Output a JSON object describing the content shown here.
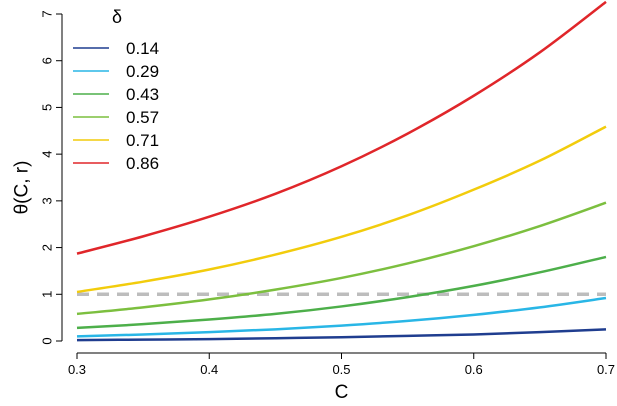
{
  "chart_data": {
    "type": "line",
    "title": "",
    "xlabel": "C",
    "ylabel": "θ(C, r)",
    "xlim": [
      0.3,
      0.7
    ],
    "ylim": [
      0,
      7
    ],
    "x_ticks": [
      0.3,
      0.4,
      0.5,
      0.6,
      0.7
    ],
    "x_tick_labels": [
      "0.3",
      "0.4",
      "0.5",
      "0.6",
      "0.7"
    ],
    "y_ticks": [
      0,
      1,
      2,
      3,
      4,
      5,
      6,
      7
    ],
    "y_tick_labels": [
      "0",
      "1",
      "2",
      "3",
      "4",
      "5",
      "6",
      "7"
    ],
    "grid": false,
    "legend": {
      "title": "δ",
      "placement": "top-left"
    },
    "reference_line": {
      "y": 1,
      "style": "dashed",
      "color": "#bdbdbd"
    },
    "x": [
      0.3,
      0.35,
      0.4,
      0.45,
      0.5,
      0.55,
      0.6,
      0.65,
      0.7
    ],
    "series": [
      {
        "name": "0.14",
        "color": "#1f3d8f",
        "values": [
          0.02,
          0.03,
          0.04,
          0.06,
          0.08,
          0.11,
          0.14,
          0.19,
          0.25
        ]
      },
      {
        "name": "0.29",
        "color": "#29b6e6",
        "values": [
          0.1,
          0.14,
          0.19,
          0.25,
          0.33,
          0.43,
          0.56,
          0.72,
          0.92
        ]
      },
      {
        "name": "0.43",
        "color": "#4daf4a",
        "values": [
          0.28,
          0.36,
          0.46,
          0.58,
          0.74,
          0.94,
          1.18,
          1.47,
          1.8
        ]
      },
      {
        "name": "0.57",
        "color": "#7cbf3f",
        "values": [
          0.58,
          0.72,
          0.89,
          1.1,
          1.35,
          1.66,
          2.03,
          2.46,
          2.96
        ]
      },
      {
        "name": "0.71",
        "color": "#f2cc0c",
        "values": [
          1.05,
          1.27,
          1.53,
          1.85,
          2.23,
          2.69,
          3.24,
          3.86,
          4.59
        ]
      },
      {
        "name": "0.86",
        "color": "#e0262a",
        "values": [
          1.87,
          2.24,
          2.66,
          3.15,
          3.74,
          4.44,
          5.25,
          6.18,
          7.26
        ]
      }
    ]
  }
}
